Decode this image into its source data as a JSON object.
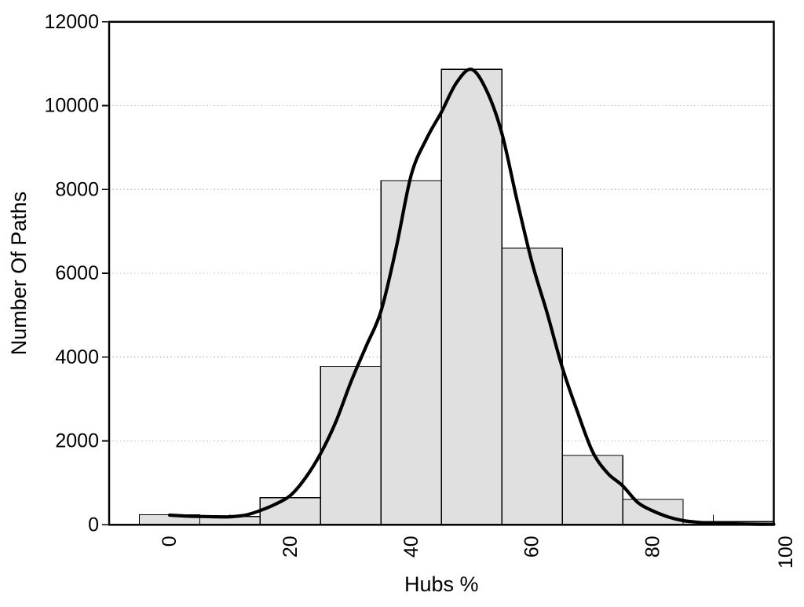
{
  "chart_data": {
    "type": "bar",
    "subtype": "histogram-with-fit-curve",
    "title": "",
    "xlabel": "Hubs %",
    "ylabel": "Number Of Paths",
    "xlim": [
      -10,
      100
    ],
    "ylim": [
      0,
      12000
    ],
    "x_ticks": [
      0,
      20,
      40,
      60,
      80,
      100
    ],
    "x_tick_labels": [
      "0",
      "20",
      "40",
      "60",
      "80",
      "100"
    ],
    "x_tick_label_positions": [
      0,
      20,
      40,
      60,
      80,
      102
    ],
    "x_minor_ticks": [
      10,
      30,
      50,
      70,
      90
    ],
    "y_ticks": [
      0,
      2000,
      4000,
      6000,
      8000,
      10000,
      12000
    ],
    "y_tick_labels": [
      "0",
      "2000",
      "4000",
      "6000",
      "8000",
      "10000",
      "12000"
    ],
    "grid": "horizontal-dotted",
    "legend": "none",
    "bin_width": 10,
    "categories": [
      0,
      10,
      20,
      30,
      40,
      50,
      60,
      70,
      80,
      90,
      100
    ],
    "values": [
      240,
      200,
      645,
      3780,
      8210,
      10870,
      6600,
      1655,
      605,
      75,
      75
    ],
    "series": [
      {
        "name": "fit-curve",
        "type": "line",
        "points": [
          [
            0,
            230
          ],
          [
            2.5,
            210
          ],
          [
            5,
            198
          ],
          [
            7.5,
            191
          ],
          [
            10,
            192
          ],
          [
            12.5,
            228
          ],
          [
            15,
            340
          ],
          [
            17.5,
            490
          ],
          [
            20,
            700
          ],
          [
            22.5,
            1120
          ],
          [
            25,
            1700
          ],
          [
            27.5,
            2450
          ],
          [
            30,
            3400
          ],
          [
            32.5,
            4250
          ],
          [
            35,
            5100
          ],
          [
            37.5,
            6600
          ],
          [
            40,
            8350
          ],
          [
            42.5,
            9200
          ],
          [
            45,
            9850
          ],
          [
            47.5,
            10550
          ],
          [
            50,
            10865
          ],
          [
            52.5,
            10350
          ],
          [
            55,
            9340
          ],
          [
            57.5,
            7750
          ],
          [
            60,
            6250
          ],
          [
            62.5,
            5050
          ],
          [
            65,
            3750
          ],
          [
            67.5,
            2700
          ],
          [
            70,
            1750
          ],
          [
            72.5,
            1230
          ],
          [
            75,
            930
          ],
          [
            77.5,
            530
          ],
          [
            80,
            330
          ],
          [
            82.5,
            190
          ],
          [
            85,
            100
          ],
          [
            87.5,
            60
          ],
          [
            90,
            35
          ],
          [
            92.5,
            25
          ],
          [
            95,
            18
          ],
          [
            97.5,
            14
          ],
          [
            100,
            12
          ]
        ]
      }
    ],
    "colors": {
      "background": "#ffffff",
      "bar_fill": "#e0e0e0",
      "bar_border": "#000000",
      "curve": "#000000",
      "axis": "#000000",
      "grid": "#b9b9b9",
      "text": "#000000"
    }
  }
}
